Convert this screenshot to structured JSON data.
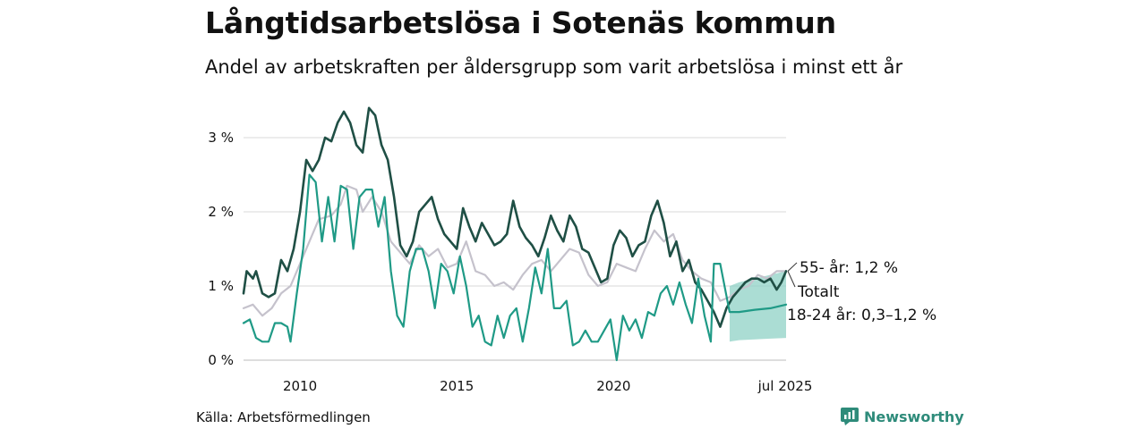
{
  "title": "Långtidsarbetslösa i Sotenäs kommun",
  "subtitle": "Andel av arbetskraften per åldersgrupp som varit arbetslösa i minst ett år",
  "source": "Källa: Arbetsförmedlingen",
  "brand": "Newsworthy",
  "colors": {
    "age_55_plus": "#1f4f45",
    "total": "#c5c2cc",
    "age_18_24": "#1f9a86",
    "uncertainty_band": "#8fd1c5",
    "grid": "#d9d9d9",
    "brand": "#2e8b7a"
  },
  "chart_data": {
    "type": "line",
    "title": "Långtidsarbetslösa i Sotenäs kommun",
    "subtitle": "Andel av arbetskraften per åldersgrupp som varit arbetslösa i minst ett år",
    "x_unit": "year",
    "xlim": [
      2008.2,
      2025.5
    ],
    "ylim": [
      0,
      3.5
    ],
    "y_ticks": [
      0,
      1,
      2,
      3
    ],
    "y_tick_labels": [
      "0 %",
      "1 %",
      "2 %",
      "3 %"
    ],
    "x_ticks": [
      2010,
      2015,
      2020,
      2025.5
    ],
    "x_tick_labels": [
      "2010",
      "2015",
      "2020",
      "jul 2025"
    ],
    "grid": "horizontal",
    "series": [
      {
        "key": "total",
        "name": "Totalt",
        "end_label": "Totalt",
        "points": [
          [
            2008.2,
            0.7
          ],
          [
            2008.5,
            0.75
          ],
          [
            2008.8,
            0.6
          ],
          [
            2009.1,
            0.7
          ],
          [
            2009.4,
            0.9
          ],
          [
            2009.7,
            1.0
          ],
          [
            2010.0,
            1.3
          ],
          [
            2010.3,
            1.6
          ],
          [
            2010.6,
            1.9
          ],
          [
            2011.0,
            1.95
          ],
          [
            2011.3,
            2.1
          ],
          [
            2011.5,
            2.35
          ],
          [
            2011.8,
            2.3
          ],
          [
            2012.0,
            2.0
          ],
          [
            2012.3,
            2.2
          ],
          [
            2012.6,
            2.0
          ],
          [
            2012.9,
            1.6
          ],
          [
            2013.2,
            1.45
          ],
          [
            2013.5,
            1.3
          ],
          [
            2013.8,
            1.55
          ],
          [
            2014.1,
            1.4
          ],
          [
            2014.4,
            1.5
          ],
          [
            2014.7,
            1.25
          ],
          [
            2015.0,
            1.3
          ],
          [
            2015.3,
            1.6
          ],
          [
            2015.6,
            1.2
          ],
          [
            2015.9,
            1.15
          ],
          [
            2016.2,
            1.0
          ],
          [
            2016.5,
            1.05
          ],
          [
            2016.8,
            0.95
          ],
          [
            2017.1,
            1.15
          ],
          [
            2017.4,
            1.3
          ],
          [
            2017.7,
            1.35
          ],
          [
            2018.0,
            1.2
          ],
          [
            2018.3,
            1.35
          ],
          [
            2018.6,
            1.5
          ],
          [
            2018.9,
            1.45
          ],
          [
            2019.2,
            1.15
          ],
          [
            2019.5,
            1.0
          ],
          [
            2019.8,
            1.05
          ],
          [
            2020.1,
            1.3
          ],
          [
            2020.4,
            1.25
          ],
          [
            2020.7,
            1.2
          ],
          [
            2021.0,
            1.5
          ],
          [
            2021.3,
            1.75
          ],
          [
            2021.6,
            1.6
          ],
          [
            2021.9,
            1.7
          ],
          [
            2022.2,
            1.35
          ],
          [
            2022.5,
            1.2
          ],
          [
            2022.8,
            1.1
          ],
          [
            2023.1,
            1.05
          ],
          [
            2023.4,
            0.8
          ],
          [
            2023.7,
            0.85
          ],
          [
            2024.0,
            0.95
          ],
          [
            2024.3,
            1.0
          ],
          [
            2024.6,
            1.15
          ],
          [
            2024.9,
            1.1
          ],
          [
            2025.2,
            1.2
          ],
          [
            2025.5,
            1.2
          ]
        ]
      },
      {
        "key": "age_55_plus",
        "name": "55- år",
        "end_label": "55- år: 1,2 %",
        "points": [
          [
            2008.2,
            0.9
          ],
          [
            2008.3,
            1.2
          ],
          [
            2008.5,
            1.1
          ],
          [
            2008.6,
            1.2
          ],
          [
            2008.8,
            0.9
          ],
          [
            2009.0,
            0.85
          ],
          [
            2009.2,
            0.9
          ],
          [
            2009.4,
            1.35
          ],
          [
            2009.6,
            1.2
          ],
          [
            2009.8,
            1.5
          ],
          [
            2010.0,
            2.0
          ],
          [
            2010.2,
            2.7
          ],
          [
            2010.4,
            2.55
          ],
          [
            2010.6,
            2.7
          ],
          [
            2010.8,
            3.0
          ],
          [
            2011.0,
            2.95
          ],
          [
            2011.2,
            3.2
          ],
          [
            2011.4,
            3.35
          ],
          [
            2011.6,
            3.2
          ],
          [
            2011.8,
            2.9
          ],
          [
            2012.0,
            2.8
          ],
          [
            2012.2,
            3.4
          ],
          [
            2012.4,
            3.3
          ],
          [
            2012.6,
            2.9
          ],
          [
            2012.8,
            2.7
          ],
          [
            2013.0,
            2.2
          ],
          [
            2013.2,
            1.55
          ],
          [
            2013.4,
            1.4
          ],
          [
            2013.6,
            1.6
          ],
          [
            2013.8,
            2.0
          ],
          [
            2014.0,
            2.1
          ],
          [
            2014.2,
            2.2
          ],
          [
            2014.4,
            1.9
          ],
          [
            2014.6,
            1.7
          ],
          [
            2014.8,
            1.6
          ],
          [
            2015.0,
            1.5
          ],
          [
            2015.2,
            2.05
          ],
          [
            2015.4,
            1.8
          ],
          [
            2015.6,
            1.6
          ],
          [
            2015.8,
            1.85
          ],
          [
            2016.0,
            1.7
          ],
          [
            2016.2,
            1.55
          ],
          [
            2016.4,
            1.6
          ],
          [
            2016.6,
            1.7
          ],
          [
            2016.8,
            2.15
          ],
          [
            2017.0,
            1.8
          ],
          [
            2017.2,
            1.65
          ],
          [
            2017.4,
            1.55
          ],
          [
            2017.6,
            1.4
          ],
          [
            2017.8,
            1.65
          ],
          [
            2018.0,
            1.95
          ],
          [
            2018.2,
            1.75
          ],
          [
            2018.4,
            1.6
          ],
          [
            2018.6,
            1.95
          ],
          [
            2018.8,
            1.8
          ],
          [
            2019.0,
            1.5
          ],
          [
            2019.2,
            1.45
          ],
          [
            2019.4,
            1.25
          ],
          [
            2019.6,
            1.05
          ],
          [
            2019.8,
            1.1
          ],
          [
            2020.0,
            1.55
          ],
          [
            2020.2,
            1.75
          ],
          [
            2020.4,
            1.65
          ],
          [
            2020.6,
            1.4
          ],
          [
            2020.8,
            1.55
          ],
          [
            2021.0,
            1.6
          ],
          [
            2021.2,
            1.95
          ],
          [
            2021.4,
            2.15
          ],
          [
            2021.6,
            1.85
          ],
          [
            2021.8,
            1.4
          ],
          [
            2022.0,
            1.6
          ],
          [
            2022.2,
            1.2
          ],
          [
            2022.4,
            1.35
          ],
          [
            2022.6,
            1.05
          ],
          [
            2022.8,
            0.95
          ],
          [
            2023.0,
            0.8
          ],
          [
            2023.2,
            0.65
          ],
          [
            2023.4,
            0.45
          ],
          [
            2023.6,
            0.7
          ],
          [
            2023.8,
            0.85
          ],
          [
            2024.0,
            0.95
          ],
          [
            2024.2,
            1.05
          ],
          [
            2024.4,
            1.1
          ],
          [
            2024.6,
            1.1
          ],
          [
            2024.8,
            1.05
          ],
          [
            2025.0,
            1.1
          ],
          [
            2025.2,
            0.95
          ],
          [
            2025.35,
            1.05
          ],
          [
            2025.5,
            1.2
          ]
        ]
      },
      {
        "key": "age_18_24",
        "name": "18-24 år",
        "end_label": "18-24 år: 0,3–1,2 %",
        "points": [
          [
            2008.2,
            0.5
          ],
          [
            2008.4,
            0.55
          ],
          [
            2008.6,
            0.3
          ],
          [
            2008.8,
            0.25
          ],
          [
            2009.0,
            0.25
          ],
          [
            2009.2,
            0.5
          ],
          [
            2009.4,
            0.5
          ],
          [
            2009.6,
            0.45
          ],
          [
            2009.7,
            0.25
          ],
          [
            2009.9,
            0.9
          ],
          [
            2010.1,
            1.5
          ],
          [
            2010.3,
            2.5
          ],
          [
            2010.5,
            2.4
          ],
          [
            2010.7,
            1.6
          ],
          [
            2010.9,
            2.2
          ],
          [
            2011.1,
            1.6
          ],
          [
            2011.3,
            2.35
          ],
          [
            2011.5,
            2.3
          ],
          [
            2011.7,
            1.5
          ],
          [
            2011.9,
            2.2
          ],
          [
            2012.1,
            2.3
          ],
          [
            2012.3,
            2.3
          ],
          [
            2012.5,
            1.8
          ],
          [
            2012.7,
            2.2
          ],
          [
            2012.9,
            1.2
          ],
          [
            2013.1,
            0.6
          ],
          [
            2013.3,
            0.45
          ],
          [
            2013.5,
            1.2
          ],
          [
            2013.7,
            1.5
          ],
          [
            2013.9,
            1.5
          ],
          [
            2014.1,
            1.2
          ],
          [
            2014.3,
            0.7
          ],
          [
            2014.5,
            1.3
          ],
          [
            2014.7,
            1.2
          ],
          [
            2014.9,
            0.9
          ],
          [
            2015.1,
            1.4
          ],
          [
            2015.3,
            1.0
          ],
          [
            2015.5,
            0.45
          ],
          [
            2015.7,
            0.6
          ],
          [
            2015.9,
            0.25
          ],
          [
            2016.1,
            0.2
          ],
          [
            2016.3,
            0.6
          ],
          [
            2016.5,
            0.3
          ],
          [
            2016.7,
            0.6
          ],
          [
            2016.9,
            0.7
          ],
          [
            2017.1,
            0.25
          ],
          [
            2017.3,
            0.7
          ],
          [
            2017.5,
            1.25
          ],
          [
            2017.7,
            0.9
          ],
          [
            2017.9,
            1.5
          ],
          [
            2018.1,
            0.7
          ],
          [
            2018.3,
            0.7
          ],
          [
            2018.5,
            0.8
          ],
          [
            2018.7,
            0.2
          ],
          [
            2018.9,
            0.25
          ],
          [
            2019.1,
            0.4
          ],
          [
            2019.3,
            0.25
          ],
          [
            2019.5,
            0.25
          ],
          [
            2019.7,
            0.4
          ],
          [
            2019.9,
            0.55
          ],
          [
            2020.1,
            0.0
          ],
          [
            2020.3,
            0.6
          ],
          [
            2020.5,
            0.4
          ],
          [
            2020.7,
            0.55
          ],
          [
            2020.9,
            0.3
          ],
          [
            2021.1,
            0.65
          ],
          [
            2021.3,
            0.6
          ],
          [
            2021.5,
            0.9
          ],
          [
            2021.7,
            1.0
          ],
          [
            2021.9,
            0.75
          ],
          [
            2022.1,
            1.05
          ],
          [
            2022.3,
            0.75
          ],
          [
            2022.5,
            0.5
          ],
          [
            2022.7,
            1.1
          ],
          [
            2022.9,
            0.6
          ],
          [
            2023.1,
            0.25
          ],
          [
            2023.2,
            1.3
          ],
          [
            2023.4,
            1.3
          ],
          [
            2023.7,
            0.65
          ],
          [
            2024.0,
            0.65
          ],
          [
            2024.5,
            0.68
          ],
          [
            2025.0,
            0.7
          ],
          [
            2025.5,
            0.75
          ]
        ]
      }
    ],
    "band": {
      "series": "18-24 år",
      "upper": [
        [
          2023.7,
          1.0
        ],
        [
          2024.0,
          1.05
        ],
        [
          2024.5,
          1.1
        ],
        [
          2025.0,
          1.15
        ],
        [
          2025.5,
          1.2
        ]
      ],
      "lower": [
        [
          2023.7,
          0.25
        ],
        [
          2024.0,
          0.27
        ],
        [
          2024.5,
          0.28
        ],
        [
          2025.0,
          0.29
        ],
        [
          2025.5,
          0.3
        ]
      ]
    }
  }
}
